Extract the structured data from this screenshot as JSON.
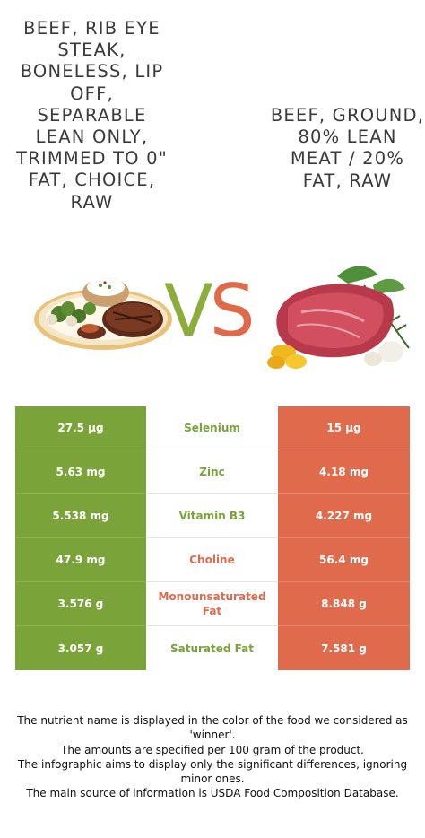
{
  "foods": {
    "left": {
      "name": "BEEF, RIB EYE STEAK, BONELESS, LIP OFF, SEPARABLE LEAN ONLY, TRIMMED TO 0\" FAT, CHOICE, RAW",
      "color": "#7aa33a",
      "image_icon": "steak-plate-image"
    },
    "right": {
      "name": "BEEF, GROUND, 80% LEAN MEAT / 20% FAT, RAW",
      "color": "#e06a4c",
      "image_icon": "raw-beef-image"
    }
  },
  "vs": {
    "v": "V",
    "s": "S"
  },
  "nutrients": [
    {
      "name": "Selenium",
      "left": "27.5 µg",
      "right": "15 µg",
      "winner": "left"
    },
    {
      "name": "Zinc",
      "left": "5.63 mg",
      "right": "4.18 mg",
      "winner": "left"
    },
    {
      "name": "Vitamin B3",
      "left": "5.538 mg",
      "right": "4.227 mg",
      "winner": "left"
    },
    {
      "name": "Choline",
      "left": "47.9 mg",
      "right": "56.4 mg",
      "winner": "right"
    },
    {
      "name": "Monounsaturated Fat",
      "left": "3.576 g",
      "right": "8.848 g",
      "winner": "right"
    },
    {
      "name": "Saturated Fat",
      "left": "3.057 g",
      "right": "7.581 g",
      "winner": "left"
    }
  ],
  "footer": {
    "line1": "The nutrient name is displayed in the color of the food we considered as 'winner'.",
    "line2": "The amounts are specified per 100 gram of the product.",
    "line3": "The infographic aims to display only the significant differences, ignoring minor ones.",
    "line4": "The main source of information is USDA Food Composition Database."
  }
}
